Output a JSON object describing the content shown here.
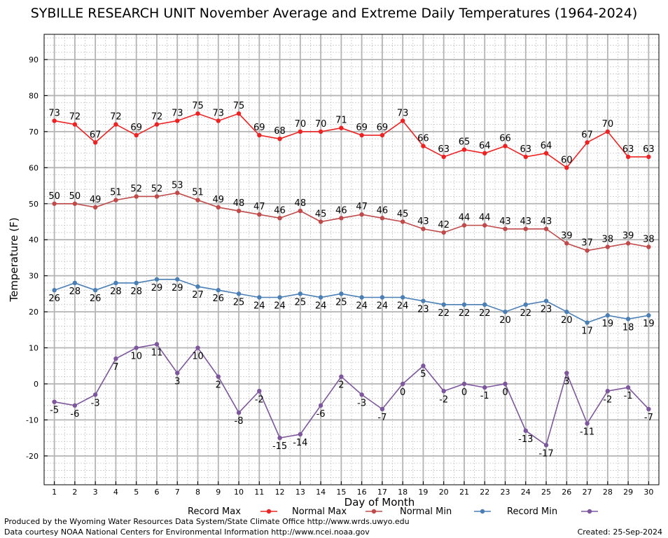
{
  "chart_data": {
    "type": "line",
    "title": "SYBILLE RESEARCH UNIT November Average and Extreme Daily Temperatures (1964-2024)",
    "xlabel": "Day of Month",
    "ylabel": "Temperature (F)",
    "xlim": [
      0.5,
      30.5
    ],
    "ylim": [
      -28,
      97
    ],
    "yticks": [
      -20,
      -10,
      0,
      10,
      20,
      30,
      40,
      50,
      60,
      70,
      80,
      90
    ],
    "x": [
      1,
      2,
      3,
      4,
      5,
      6,
      7,
      8,
      9,
      10,
      11,
      12,
      13,
      14,
      15,
      16,
      17,
      18,
      19,
      20,
      21,
      22,
      23,
      24,
      25,
      26,
      27,
      28,
      29,
      30
    ],
    "grid": true,
    "legend_position": "bottom",
    "series": [
      {
        "name": "Record Max",
        "color": "#ee2222",
        "label_pos": "above",
        "values": [
          73,
          72,
          67,
          72,
          69,
          72,
          73,
          75,
          73,
          75,
          69,
          68,
          70,
          70,
          71,
          69,
          69,
          73,
          66,
          63,
          65,
          64,
          66,
          63,
          64,
          60,
          67,
          70,
          63,
          63
        ]
      },
      {
        "name": "Normal Max",
        "color": "#c04a4a",
        "label_pos": "above",
        "values": [
          50,
          50,
          49,
          51,
          52,
          52,
          53,
          51,
          49,
          48,
          47,
          46,
          48,
          45,
          46,
          47,
          46,
          45,
          43,
          42,
          44,
          44,
          43,
          43,
          43,
          39,
          37,
          38,
          39,
          38
        ]
      },
      {
        "name": "Normal Min",
        "color": "#4a7fb5",
        "label_pos": "below",
        "values": [
          26,
          28,
          26,
          28,
          28,
          29,
          29,
          27,
          26,
          25,
          24,
          24,
          25,
          24,
          25,
          24,
          24,
          24,
          23,
          22,
          22,
          22,
          20,
          22,
          23,
          20,
          17,
          19,
          18,
          19
        ]
      },
      {
        "name": "Record Min",
        "color": "#7d569d",
        "label_pos": "below",
        "values": [
          -5,
          -6,
          -3,
          7,
          10,
          11,
          3,
          10,
          2,
          -8,
          -2,
          -15,
          -14,
          -6,
          2,
          -3,
          -7,
          0,
          5,
          -2,
          0,
          -1,
          0,
          -13,
          -17,
          3,
          -11,
          -2,
          -1,
          -7
        ]
      }
    ]
  },
  "footer": {
    "credit_line1": "Produced by the Wyoming Water Resources Data System/State Climate Office http://www.wrds.uwyo.edu",
    "credit_line2": "Data courtesy NOAA National Centers for Environmental Information http://www.ncei.noaa.gov",
    "created": "Created:  25-Sep-2024"
  }
}
